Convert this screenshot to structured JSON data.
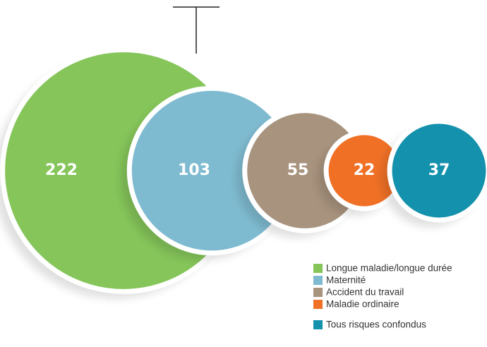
{
  "chart_data": {
    "type": "bubble",
    "categories": [
      "Longue maladie/longue durée",
      "Maternité",
      "Accident du travail",
      "Maladie ordinaire",
      "Tous risques confondus"
    ],
    "values": [
      222,
      103,
      55,
      22,
      37
    ],
    "colors": [
      "#85c55a",
      "#7fbbd0",
      "#a8937e",
      "#f07126",
      "#1491ac"
    ]
  }
}
